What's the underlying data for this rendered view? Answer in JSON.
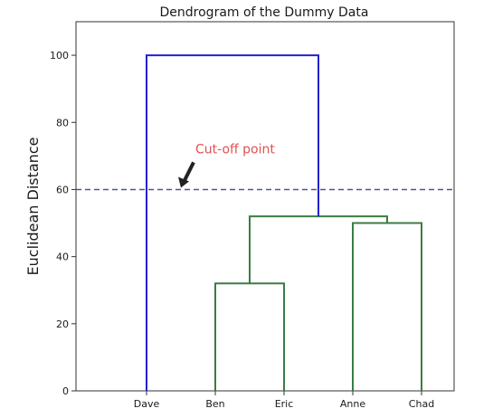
{
  "chart_data": {
    "type": "dendrogram",
    "title": "Dendrogram of the Dummy Data",
    "xlabel": "",
    "ylabel": "Euclidean Distance",
    "ylim": [
      0,
      110
    ],
    "yticks": [
      0,
      20,
      40,
      60,
      80,
      100
    ],
    "leaves": [
      "Dave",
      "Ben",
      "Eric",
      "Anne",
      "Chad"
    ],
    "links": [
      {
        "id": "ben-eric",
        "left": "Ben",
        "right": "Eric",
        "height": 32,
        "color": "#3a7d44"
      },
      {
        "id": "anne-chad",
        "left": "Anne",
        "right": "Chad",
        "height": 50,
        "color": "#3a7d44"
      },
      {
        "id": "beneric-annechad",
        "left": "ben-eric",
        "right": "anne-chad",
        "height": 52,
        "color": "#3a7d44"
      },
      {
        "id": "dave-rest",
        "left": "Dave",
        "right": "beneric-annechad",
        "height": 100,
        "color": "#2222cc"
      }
    ],
    "cutoff": {
      "value": 60,
      "color": "#4a5a8a",
      "style": "dashed"
    },
    "annotation": {
      "text": "Cut-off point",
      "color": "#e05050",
      "arrow_target": {
        "x_leaf_position": 0.5,
        "y": 60
      }
    }
  }
}
